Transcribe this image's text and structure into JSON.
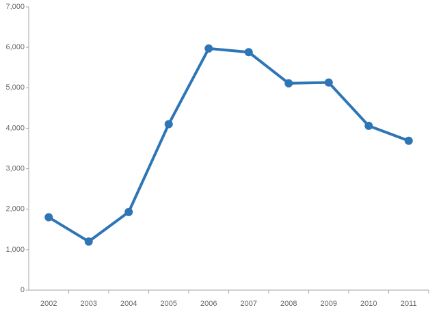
{
  "chart_data": {
    "type": "line",
    "categories": [
      "2002",
      "2003",
      "2004",
      "2005",
      "2006",
      "2007",
      "2008",
      "2009",
      "2010",
      "2011"
    ],
    "values": [
      1800,
      1200,
      1930,
      4100,
      5970,
      5880,
      5110,
      5130,
      4060,
      3690
    ],
    "color": "#2e75b6",
    "ylim": [
      0,
      7000
    ],
    "yticks": [
      0,
      {
        "value": 1000,
        "label": "1,000"
      },
      {
        "value": 2000,
        "label": "2,000"
      },
      {
        "value": 3000,
        "label": "3,000"
      },
      {
        "value": 4000,
        "label": "4,000"
      },
      {
        "value": 5000,
        "label": "5,000"
      },
      {
        "value": 6000,
        "label": "6,000"
      },
      {
        "value": 7000,
        "label": "7,000"
      }
    ],
    "grid": false
  }
}
